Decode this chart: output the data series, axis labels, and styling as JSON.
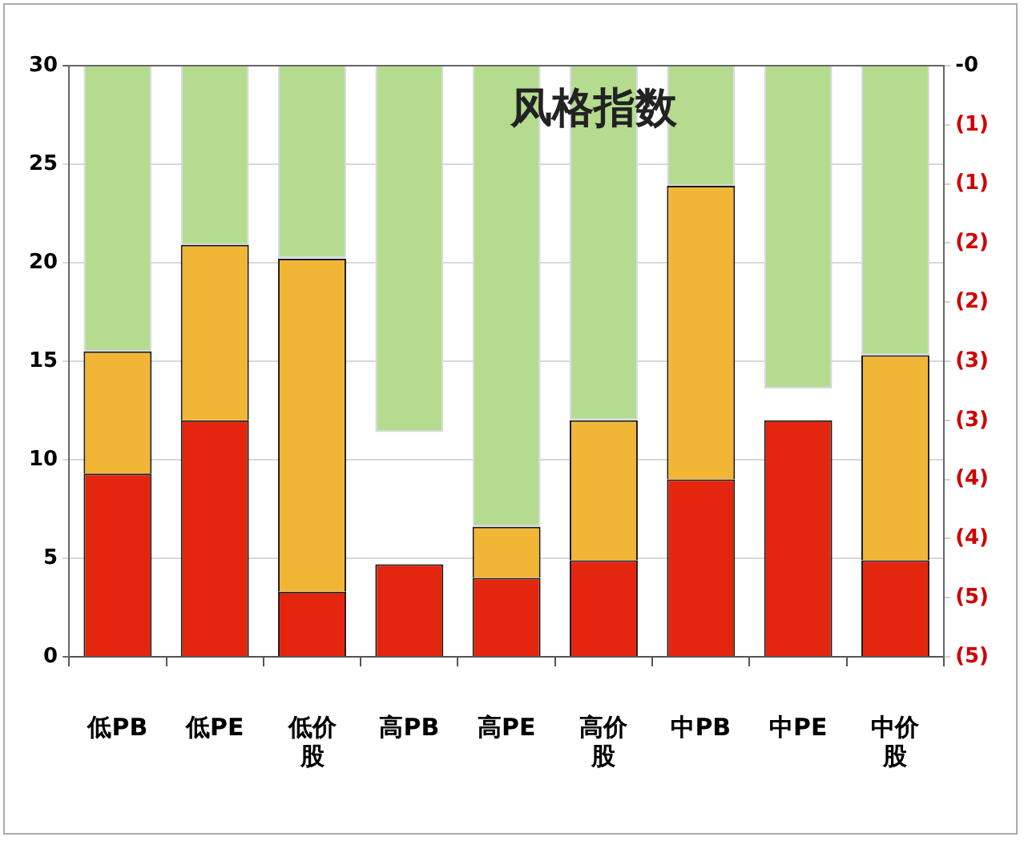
{
  "chart_data": {
    "type": "bar",
    "title": "风格指数",
    "categories": [
      "低PB",
      "低PE",
      "低价股",
      "高PB",
      "高PE",
      "高价股",
      "中PB",
      "中PE",
      "中价股"
    ],
    "stacked": true,
    "grid": "y",
    "legend": false,
    "ylim": [
      0,
      30
    ],
    "yticks": [
      0,
      5,
      10,
      15,
      20,
      25,
      30
    ],
    "y2lim": [
      -5,
      0
    ],
    "y2ticks": [
      {
        "value": 0,
        "label": "-0"
      },
      {
        "value": -0.5,
        "label": "(1)"
      },
      {
        "value": -1,
        "label": "(1)"
      },
      {
        "value": -1.5,
        "label": "(2)"
      },
      {
        "value": -2,
        "label": "(2)"
      },
      {
        "value": -2.5,
        "label": "(3)"
      },
      {
        "value": -3,
        "label": "(3)"
      },
      {
        "value": -3.5,
        "label": "(4)"
      },
      {
        "value": -4,
        "label": "(4)"
      },
      {
        "value": -4.5,
        "label": "(5)"
      },
      {
        "value": -5,
        "label": "(5)"
      }
    ],
    "series": [
      {
        "color": "#b5dc8e",
        "axis": "y2",
        "values": [
          -2.42,
          -1.52,
          -1.63,
          -3.1,
          -3.9,
          -3.0,
          -1.02,
          -2.73,
          -2.45
        ]
      },
      {
        "color": "#e4260e",
        "values": [
          9.3,
          12,
          3.3,
          4.7,
          4.0,
          4.9,
          9.0,
          12,
          4.9
        ]
      },
      {
        "color": "#f2b636",
        "values": [
          6.2,
          8.9,
          16.9,
          null,
          2.6,
          7.1,
          14.9,
          null,
          10.4
        ]
      }
    ]
  }
}
